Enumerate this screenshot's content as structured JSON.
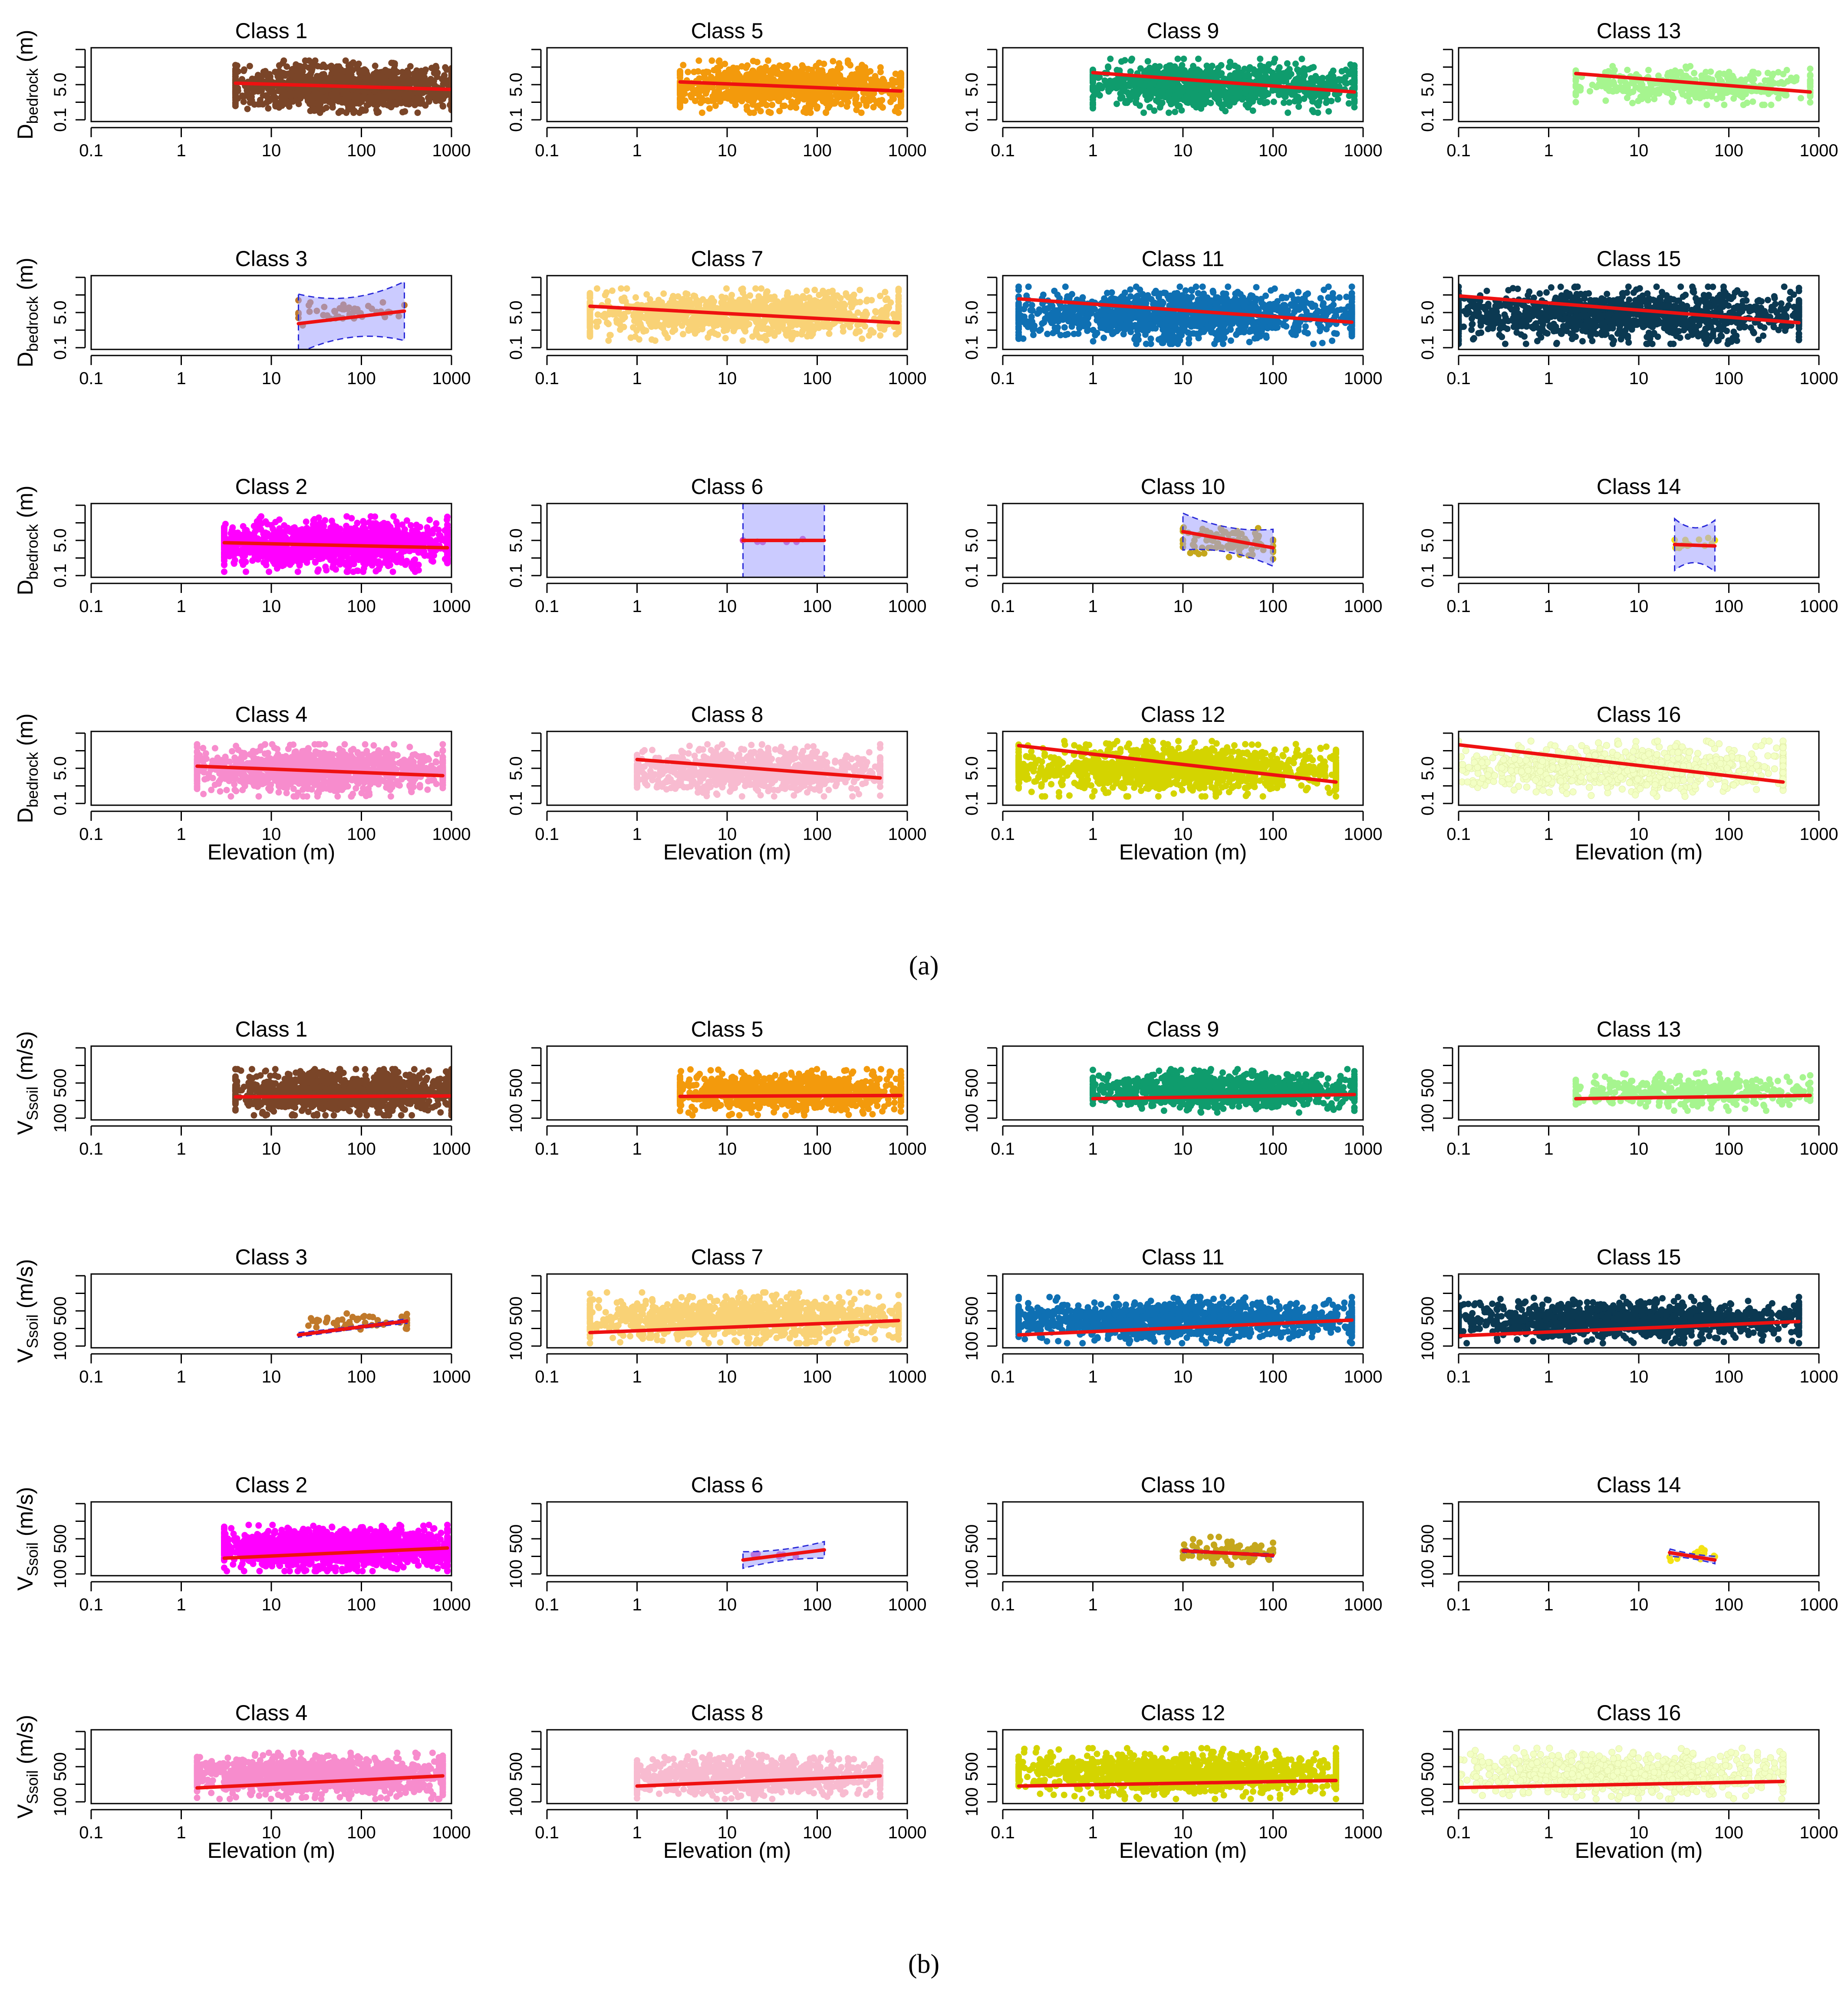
{
  "figure": {
    "sections": [
      {
        "label": "(a)",
        "ylabel_base": "D",
        "ylabel_sub": "bedrock",
        "ylabel_unit": " (m)",
        "yticks": [
          "0.1",
          "5.0"
        ],
        "y_scale": "log",
        "ylim": [
          0.1,
          1000
        ],
        "xlabel": "Elevation (m)"
      },
      {
        "label": "(b)",
        "ylabel_base": "V",
        "ylabel_sub": "Ssoil",
        "ylabel_unit": " (m/s)",
        "yticks": [
          "100",
          "500"
        ],
        "y_scale": "linear",
        "ylim": [
          100,
          900
        ],
        "xlabel": "Elevation (m)"
      }
    ],
    "xticks": [
      "0.1",
      "1",
      "10",
      "100",
      "1000"
    ],
    "x_scale": "log",
    "xlim": [
      0.1,
      1000
    ]
  },
  "chart_data": [
    {
      "type": "scatter",
      "section": "a",
      "x_scale": "log",
      "y_scale": "log",
      "xlim": [
        0.1,
        1000
      ],
      "ylim": [
        0.1,
        1000
      ],
      "xlabel": "Elevation (m)",
      "ylabel": "Dbedrock (m)",
      "panels": [
        {
          "title": "Class 1",
          "color": "#7a4528",
          "x_range": [
            4,
            1000
          ],
          "y_band": [
            0.3,
            200
          ],
          "fit": [
            [
              4,
              12
            ],
            [
              1000,
              5.5
            ]
          ],
          "ci": 0,
          "n": 1300
        },
        {
          "title": "Class 5",
          "color": "#f39a0c",
          "x_range": [
            3,
            850
          ],
          "y_band": [
            0.3,
            200
          ],
          "fit": [
            [
              3,
              14
            ],
            [
              850,
              4.5
            ]
          ],
          "ci": 0,
          "n": 1000
        },
        {
          "title": "Class 9",
          "color": "#0f9c6d",
          "x_range": [
            1,
            800
          ],
          "y_band": [
            0.3,
            250
          ],
          "fit": [
            [
              1,
              45
            ],
            [
              800,
              4
            ]
          ],
          "ci": 0,
          "n": 1000
        },
        {
          "title": "Class 13",
          "color": "#a6f58f",
          "x_range": [
            2,
            800
          ],
          "y_band": [
            0.8,
            100
          ],
          "fit": [
            [
              2,
              40
            ],
            [
              800,
              4
            ]
          ],
          "ci": 0,
          "n": 400
        },
        {
          "title": "Class 3",
          "color": "#c0792b",
          "x_range": [
            20,
            300
          ],
          "y_band": [
            2,
            50
          ],
          "fit": [
            [
              20,
              2.5
            ],
            [
              300,
              12
            ]
          ],
          "ci": 0.4,
          "n": 45
        },
        {
          "title": "Class 7",
          "color": "#f9d276",
          "x_range": [
            0.3,
            800
          ],
          "y_band": [
            0.3,
            200
          ],
          "fit": [
            [
              0.3,
              22
            ],
            [
              800,
              2.8
            ]
          ],
          "ci": 0,
          "n": 1100
        },
        {
          "title": "Class 11",
          "color": "#0f70b3",
          "x_range": [
            0.15,
            750
          ],
          "y_band": [
            0.2,
            250
          ],
          "fit": [
            [
              0.15,
              55
            ],
            [
              750,
              3
            ]
          ],
          "ci": 0,
          "n": 1300
        },
        {
          "title": "Class 15",
          "color": "#0b3952",
          "x_range": [
            0.1,
            600
          ],
          "y_band": [
            0.2,
            250
          ],
          "fit": [
            [
              0.1,
              80
            ],
            [
              600,
              2.8
            ]
          ],
          "ci": 0,
          "n": 1200
        },
        {
          "title": "Class 2",
          "color": "#ff00ff",
          "x_range": [
            3,
            900
          ],
          "y_band": [
            0.2,
            200
          ],
          "fit": [
            [
              3,
              7.5
            ],
            [
              900,
              4
            ]
          ],
          "ci": 0,
          "n": 1500
        },
        {
          "title": "Class 6",
          "color": "#d040b8",
          "x_range": [
            15,
            120
          ],
          "y_band": [
            4,
            30
          ],
          "fit": [
            [
              15,
              10
            ],
            [
              120,
              10
            ]
          ],
          "ci": 1.6,
          "n": 6
        },
        {
          "title": "Class 10",
          "color": "#c5a71c",
          "x_range": [
            10,
            100
          ],
          "y_band": [
            1,
            80
          ],
          "fit": [
            [
              10,
              30
            ],
            [
              100,
              4
            ]
          ],
          "ci": 0.25,
          "n": 90
        },
        {
          "title": "Class 14",
          "color": "#f4e214",
          "x_range": [
            25,
            70
          ],
          "y_band": [
            2,
            20
          ],
          "fit": [
            [
              25,
              6
            ],
            [
              70,
              5
            ]
          ],
          "ci": 0.35,
          "n": 14
        },
        {
          "title": "Class 4",
          "color": "#f78ccd",
          "x_range": [
            1.5,
            800
          ],
          "y_band": [
            0.3,
            200
          ],
          "fit": [
            [
              1.5,
              13
            ],
            [
              800,
              4
            ]
          ],
          "ci": 0,
          "n": 1200
        },
        {
          "title": "Class 8",
          "color": "#f8bbd0",
          "x_range": [
            1,
            500
          ],
          "y_band": [
            0.3,
            200
          ],
          "fit": [
            [
              1,
              30
            ],
            [
              500,
              3
            ]
          ],
          "ci": 0,
          "n": 900
        },
        {
          "title": "Class 12",
          "color": "#d4d400",
          "x_range": [
            0.15,
            500
          ],
          "y_band": [
            0.3,
            300
          ],
          "fit": [
            [
              0.15,
              170
            ],
            [
              500,
              1.8
            ]
          ],
          "ci": 0,
          "n": 1200
        },
        {
          "title": "Class 16",
          "color": "#f3ffc4",
          "x_range": [
            0.07,
            400
          ],
          "y_band": [
            0.3,
            300
          ],
          "fit": [
            [
              0.07,
              230
            ],
            [
              400,
              1.8
            ]
          ],
          "ci": 0,
          "n": 900
        }
      ]
    },
    {
      "type": "scatter",
      "section": "b",
      "x_scale": "log",
      "y_scale": "linear",
      "xlim": [
        0.1,
        1000
      ],
      "ylim": [
        100,
        900
      ],
      "xlabel": "Elevation (m)",
      "ylabel": "VSsoil (m/s)",
      "panels": [
        {
          "title": "Class 1",
          "color": "#7a4528",
          "x_range": [
            4,
            1000
          ],
          "y_band": [
            150,
            650
          ],
          "fit": [
            [
              4,
              350
            ],
            [
              1000,
              360
            ]
          ],
          "ci": 0,
          "n": 1300
        },
        {
          "title": "Class 5",
          "color": "#f39a0c",
          "x_range": [
            3,
            850
          ],
          "y_band": [
            150,
            650
          ],
          "fit": [
            [
              3,
              355
            ],
            [
              850,
              365
            ]
          ],
          "ci": 0,
          "n": 1000
        },
        {
          "title": "Class 9",
          "color": "#0f9c6d",
          "x_range": [
            1,
            800
          ],
          "y_band": [
            180,
            650
          ],
          "fit": [
            [
              1,
              330
            ],
            [
              800,
              375
            ]
          ],
          "ci": 0,
          "n": 1000
        },
        {
          "title": "Class 13",
          "color": "#a6f58f",
          "x_range": [
            2,
            800
          ],
          "y_band": [
            200,
            620
          ],
          "fit": [
            [
              2,
              330
            ],
            [
              800,
              365
            ]
          ],
          "ci": 0,
          "n": 400
        },
        {
          "title": "Class 3",
          "color": "#c0792b",
          "x_range": [
            20,
            320
          ],
          "y_band": [
            200,
            560
          ],
          "fit": [
            [
              20,
              240
            ],
            [
              320,
              390
            ]
          ],
          "ci": 25,
          "n": 45
        },
        {
          "title": "Class 7",
          "color": "#f9d276",
          "x_range": [
            0.3,
            800
          ],
          "y_band": [
            150,
            700
          ],
          "fit": [
            [
              0.3,
              265
            ],
            [
              800,
              395
            ]
          ],
          "ci": 0,
          "n": 1100
        },
        {
          "title": "Class 11",
          "color": "#0f70b3",
          "x_range": [
            0.15,
            750
          ],
          "y_band": [
            150,
            650
          ],
          "fit": [
            [
              0.15,
              240
            ],
            [
              750,
              400
            ]
          ],
          "ci": 0,
          "n": 1300
        },
        {
          "title": "Class 15",
          "color": "#0b3952",
          "x_range": [
            0.1,
            600
          ],
          "y_band": [
            150,
            650
          ],
          "fit": [
            [
              0.1,
              230
            ],
            [
              600,
              385
            ]
          ],
          "ci": 0,
          "n": 1200
        },
        {
          "title": "Class 2",
          "color": "#ff00ff",
          "x_range": [
            3,
            900
          ],
          "y_band": [
            150,
            650
          ],
          "fit": [
            [
              3,
              290
            ],
            [
              900,
              400
            ]
          ],
          "ci": 0,
          "n": 1500
        },
        {
          "title": "Class 6",
          "color": "#d040b8",
          "x_range": [
            15,
            120
          ],
          "y_band": [
            250,
            400
          ],
          "fit": [
            [
              15,
              270
            ],
            [
              120,
              380
            ]
          ],
          "ci": 90,
          "n": 6
        },
        {
          "title": "Class 10",
          "color": "#c5a71c",
          "x_range": [
            10,
            100
          ],
          "y_band": [
            200,
            520
          ],
          "fit": [
            [
              10,
              370
            ],
            [
              100,
              320
            ]
          ],
          "ci": 18,
          "n": 90
        },
        {
          "title": "Class 14",
          "color": "#f4e214",
          "x_range": [
            22,
            70
          ],
          "y_band": [
            200,
            450
          ],
          "fit": [
            [
              22,
              350
            ],
            [
              70,
              270
            ]
          ],
          "ci": 40,
          "n": 14
        },
        {
          "title": "Class 4",
          "color": "#f78ccd",
          "x_range": [
            1.5,
            800
          ],
          "y_band": [
            150,
            650
          ],
          "fit": [
            [
              1.5,
              270
            ],
            [
              800,
              400
            ]
          ],
          "ci": 0,
          "n": 1200
        },
        {
          "title": "Class 8",
          "color": "#f8bbd0",
          "x_range": [
            1,
            500
          ],
          "y_band": [
            150,
            650
          ],
          "fit": [
            [
              1,
              290
            ],
            [
              500,
              400
            ]
          ],
          "ci": 0,
          "n": 900
        },
        {
          "title": "Class 12",
          "color": "#d4d400",
          "x_range": [
            0.15,
            500
          ],
          "y_band": [
            150,
            700
          ],
          "fit": [
            [
              0.15,
              290
            ],
            [
              500,
              350
            ]
          ],
          "ci": 0,
          "n": 1200
        },
        {
          "title": "Class 16",
          "color": "#f3ffc4",
          "x_range": [
            0.07,
            400
          ],
          "y_band": [
            150,
            700
          ],
          "fit": [
            [
              0.07,
              270
            ],
            [
              400,
              340
            ]
          ],
          "ci": 0,
          "n": 900
        }
      ]
    }
  ]
}
